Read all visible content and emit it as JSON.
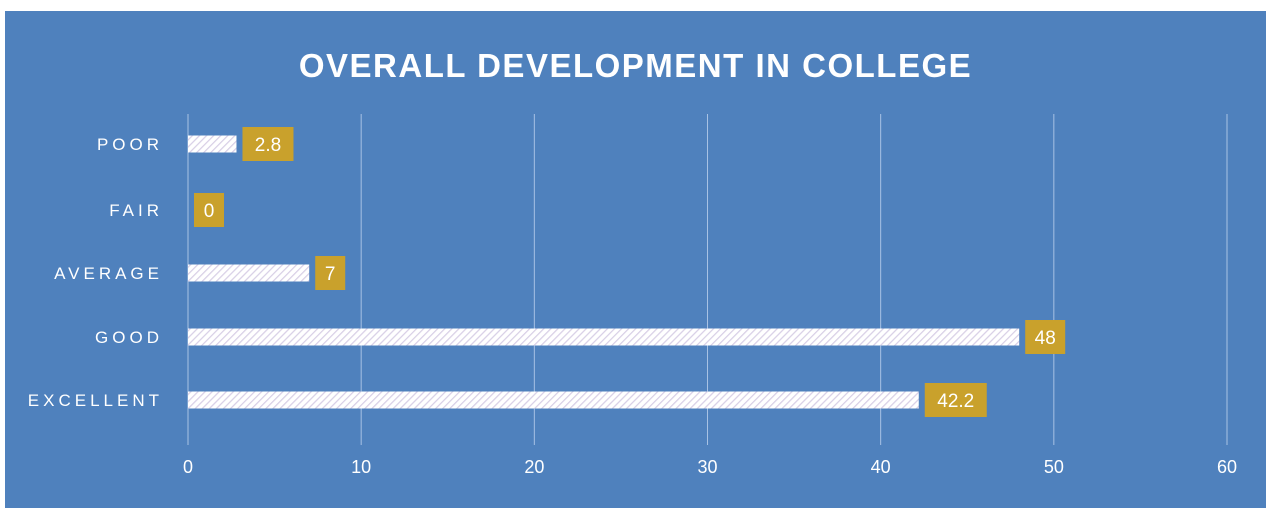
{
  "chart_data": {
    "type": "bar",
    "orientation": "horizontal",
    "title": "OVERALL DEVELOPMENT IN COLLEGE",
    "categories": [
      "POOR",
      "FAIR",
      "AVERAGE",
      "GOOD",
      "EXCELLENT"
    ],
    "values": [
      2.8,
      0,
      7,
      48,
      42.2
    ],
    "xlim": [
      0,
      60
    ],
    "x_ticks": [
      0,
      10,
      20,
      30,
      40,
      50,
      60
    ],
    "xlabel": "",
    "ylabel": "",
    "grid": "vertical",
    "legend": "none",
    "colors": {
      "background": "#4f81bd",
      "bar_stripe": "#d8cfe6",
      "bar_base": "#ffffff",
      "data_label_box": "#c9a12c",
      "gridline": "#a8c2e4",
      "text": "#ffffff"
    }
  }
}
